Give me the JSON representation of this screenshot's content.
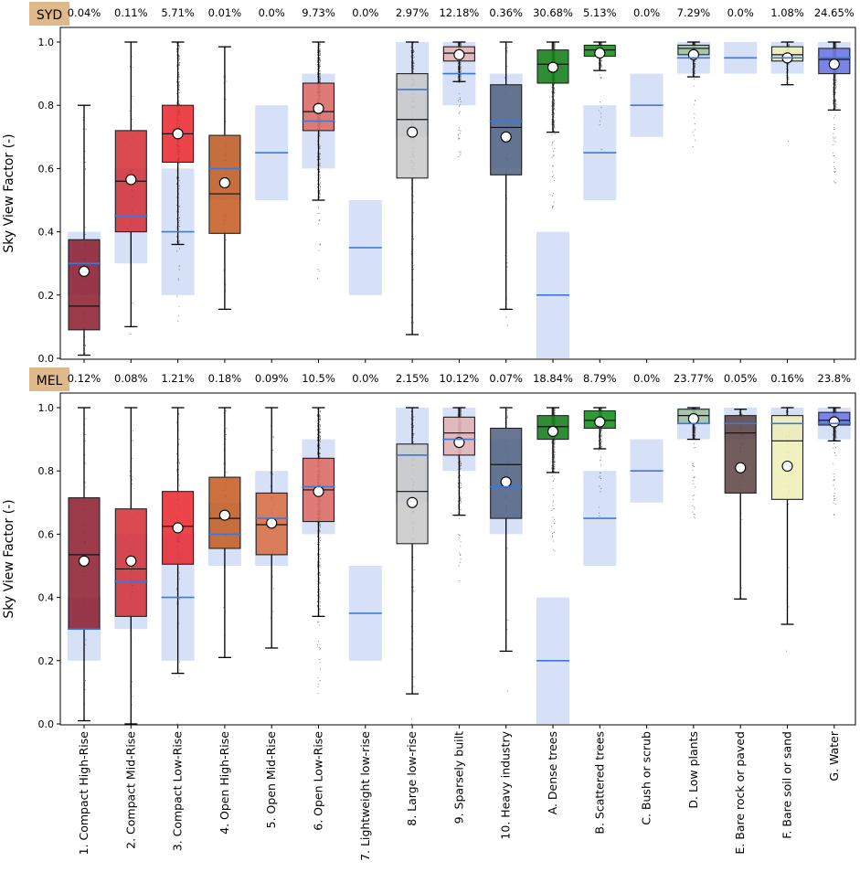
{
  "chart_data": {
    "type": "box",
    "ylabel": "Sky View Factor (-)",
    "ylim": [
      0,
      1.0
    ],
    "yticks": [
      "0.0",
      "0.2",
      "0.4",
      "0.6",
      "0.8",
      "1.0"
    ],
    "categories": [
      "1. Compact High-Rise",
      "2. Compact Mid-Rise",
      "3. Compact Low-Rise",
      "4. Open High-Rise",
      "5. Open Mid-Rise",
      "6. Open Low-Rise",
      "7. Lightweight low-rise",
      "8. Large low-rise",
      "9. Sparsely built",
      "10. Heavy industry",
      "A. Dense trees",
      "B. Scattered trees",
      "C. Bush or scrub",
      "D. Low plants",
      "E. Bare rock or paved",
      "F. Bare soil or sand",
      "G. Water"
    ],
    "colors": [
      "#8b1a2a",
      "#d42a33",
      "#e8252c",
      "#c4591d",
      "#d96a3e",
      "#e06960",
      "#d9d9d9",
      "#c8c8c8",
      "#e3b0b2",
      "#4f5f80",
      "#0a7a10",
      "#0b8a12",
      "#2d8a2d",
      "#9cc29c",
      "#5a4040",
      "#efefb4",
      "#6a73e0"
    ],
    "reference_ranges": [
      [
        0.2,
        0.4,
        0.3
      ],
      [
        0.3,
        0.6,
        0.45
      ],
      [
        0.2,
        0.6,
        0.4
      ],
      [
        0.5,
        0.7,
        0.6
      ],
      [
        0.5,
        0.8,
        0.65
      ],
      [
        0.6,
        0.9,
        0.75
      ],
      [
        0.2,
        0.5,
        0.35
      ],
      [
        0.7,
        1.0,
        0.85
      ],
      [
        0.8,
        1.0,
        0.9
      ],
      [
        0.6,
        0.9,
        0.75
      ],
      [
        0.0,
        0.4,
        0.2
      ],
      [
        0.5,
        0.8,
        0.65
      ],
      [
        0.7,
        0.9,
        0.8
      ],
      [
        0.9,
        1.0,
        0.95
      ],
      [
        0.9,
        1.0,
        0.95
      ],
      [
        0.9,
        1.0,
        0.95
      ],
      [
        0.9,
        1.0,
        0.95
      ]
    ],
    "panels": [
      {
        "city": "SYD",
        "percentages": [
          "0.04%",
          "0.11%",
          "5.71%",
          "0.01%",
          "0.0%",
          "9.73%",
          "0.0%",
          "2.97%",
          "12.18%",
          "0.36%",
          "30.68%",
          "5.13%",
          "0.0%",
          "7.29%",
          "0.0%",
          "1.08%",
          "24.65%"
        ],
        "boxes": [
          {
            "wl": 0.01,
            "q1": 0.09,
            "med": 0.165,
            "q3": 0.375,
            "wh": 0.8,
            "mean": 0.275
          },
          {
            "wl": 0.1,
            "q1": 0.4,
            "med": 0.56,
            "q3": 0.72,
            "wh": 1.0,
            "mean": 0.565
          },
          {
            "wl": 0.36,
            "q1": 0.62,
            "med": 0.71,
            "q3": 0.8,
            "wh": 1.0,
            "mean": 0.71
          },
          {
            "wl": 0.155,
            "q1": 0.395,
            "med": 0.52,
            "q3": 0.705,
            "wh": 0.985,
            "mean": 0.555
          },
          null,
          {
            "wl": 0.5,
            "q1": 0.72,
            "med": 0.78,
            "q3": 0.87,
            "wh": 1.0,
            "mean": 0.79
          },
          null,
          {
            "wl": 0.075,
            "q1": 0.57,
            "med": 0.755,
            "q3": 0.9,
            "wh": 1.0,
            "mean": 0.715
          },
          {
            "wl": 0.875,
            "q1": 0.94,
            "med": 0.965,
            "q3": 0.985,
            "wh": 1.0,
            "mean": 0.96
          },
          {
            "wl": 0.155,
            "q1": 0.58,
            "med": 0.73,
            "q3": 0.865,
            "wh": 1.0,
            "mean": 0.7
          },
          {
            "wl": 0.715,
            "q1": 0.87,
            "med": 0.93,
            "q3": 0.975,
            "wh": 1.0,
            "mean": 0.92
          },
          {
            "wl": 0.91,
            "q1": 0.955,
            "med": 0.975,
            "q3": 0.99,
            "wh": 1.0,
            "mean": 0.965
          },
          null,
          {
            "wl": 0.89,
            "q1": 0.96,
            "med": 0.98,
            "q3": 0.99,
            "wh": 1.0,
            "mean": 0.96
          },
          null,
          {
            "wl": 0.865,
            "q1": 0.94,
            "med": 0.96,
            "q3": 0.985,
            "wh": 1.0,
            "mean": 0.95
          },
          {
            "wl": 0.785,
            "q1": 0.9,
            "med": 0.945,
            "q3": 0.98,
            "wh": 1.0,
            "mean": 0.93
          }
        ]
      },
      {
        "city": "MEL",
        "percentages": [
          "0.12%",
          "0.08%",
          "1.21%",
          "0.18%",
          "0.09%",
          "10.5%",
          "0.0%",
          "2.15%",
          "10.12%",
          "0.07%",
          "18.84%",
          "8.79%",
          "0.0%",
          "23.77%",
          "0.05%",
          "0.16%",
          "23.8%"
        ],
        "boxes": [
          {
            "wl": 0.01,
            "q1": 0.3,
            "med": 0.535,
            "q3": 0.715,
            "wh": 1.0,
            "mean": 0.515
          },
          {
            "wl": 0.0,
            "q1": 0.34,
            "med": 0.49,
            "q3": 0.68,
            "wh": 1.0,
            "mean": 0.515
          },
          {
            "wl": 0.16,
            "q1": 0.505,
            "med": 0.625,
            "q3": 0.735,
            "wh": 1.0,
            "mean": 0.62
          },
          {
            "wl": 0.21,
            "q1": 0.555,
            "med": 0.65,
            "q3": 0.78,
            "wh": 1.0,
            "mean": 0.66
          },
          {
            "wl": 0.24,
            "q1": 0.535,
            "med": 0.63,
            "q3": 0.73,
            "wh": 1.0,
            "mean": 0.635
          },
          {
            "wl": 0.34,
            "q1": 0.64,
            "med": 0.74,
            "q3": 0.84,
            "wh": 1.0,
            "mean": 0.735
          },
          null,
          {
            "wl": 0.095,
            "q1": 0.57,
            "med": 0.735,
            "q3": 0.885,
            "wh": 1.0,
            "mean": 0.7
          },
          {
            "wl": 0.66,
            "q1": 0.85,
            "med": 0.92,
            "q3": 0.97,
            "wh": 1.0,
            "mean": 0.89
          },
          {
            "wl": 0.23,
            "q1": 0.65,
            "med": 0.82,
            "q3": 0.935,
            "wh": 1.0,
            "mean": 0.765
          },
          {
            "wl": 0.795,
            "q1": 0.9,
            "med": 0.94,
            "q3": 0.975,
            "wh": 1.0,
            "mean": 0.925
          },
          {
            "wl": 0.87,
            "q1": 0.935,
            "med": 0.96,
            "q3": 0.99,
            "wh": 1.0,
            "mean": 0.955
          },
          null,
          {
            "wl": 0.9,
            "q1": 0.95,
            "med": 0.975,
            "q3": 0.995,
            "wh": 1.0,
            "mean": 0.965
          },
          {
            "wl": 0.395,
            "q1": 0.73,
            "med": 0.92,
            "q3": 0.975,
            "wh": 0.995,
            "mean": 0.81
          },
          {
            "wl": 0.315,
            "q1": 0.71,
            "med": 0.895,
            "q3": 0.975,
            "wh": 1.0,
            "mean": 0.815
          },
          {
            "wl": 0.895,
            "q1": 0.945,
            "med": 0.96,
            "q3": 0.985,
            "wh": 1.0,
            "mean": 0.955
          }
        ]
      }
    ]
  }
}
